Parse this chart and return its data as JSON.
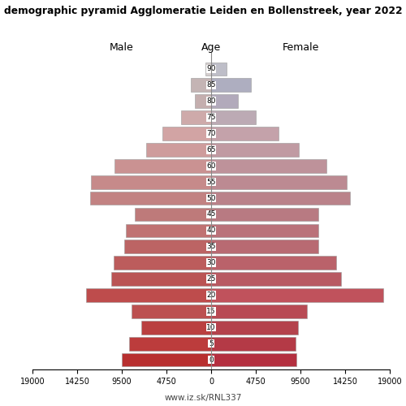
{
  "title": "demographic pyramid Agglomeratie Leiden en Bollenstreek, year 2022",
  "age_labels": [
    "90",
    "85",
    "80",
    "75",
    "70",
    "65",
    "60",
    "55",
    "50",
    "45",
    "40",
    "35",
    "30",
    "25",
    "20",
    "15",
    "10",
    "5",
    "0"
  ],
  "age_positions": [
    90,
    85,
    80,
    75,
    70,
    65,
    60,
    55,
    50,
    45,
    40,
    35,
    30,
    25,
    20,
    15,
    10,
    5,
    0
  ],
  "male": [
    620,
    2200,
    1700,
    3200,
    5200,
    6900,
    10300,
    12800,
    12900,
    8100,
    9100,
    9200,
    10400,
    10600,
    13300,
    8500,
    7400,
    8700,
    9500
  ],
  "female": [
    1600,
    4200,
    2850,
    4750,
    7200,
    9300,
    12300,
    14400,
    14800,
    11400,
    11400,
    11400,
    13300,
    13800,
    18300,
    10200,
    9200,
    9000,
    9100
  ],
  "male_colors": [
    "#d5cece",
    "#c4b4b4",
    "#c4aeae",
    "#ceaaaa",
    "#d2a4a4",
    "#ce9c9c",
    "#ca9292",
    "#c68a8a",
    "#c28282",
    "#be7a7a",
    "#c07272",
    "#bc6464",
    "#bc5c5c",
    "#ba5454",
    "#be4c4c",
    "#bc5050",
    "#ba4040",
    "#bc3c3c",
    "#b83030"
  ],
  "female_colors": [
    "#bebec8",
    "#aeaec0",
    "#b2aabb",
    "#bcaab4",
    "#c4a2aa",
    "#c09aa2",
    "#be929a",
    "#bc8a92",
    "#ba828a",
    "#b87a82",
    "#ba727a",
    "#b86a72",
    "#ba626a",
    "#b85a62",
    "#c0525c",
    "#b84a54",
    "#b4424c",
    "#b43a46",
    "#b43040"
  ],
  "xlim": 19000,
  "xticks": [
    0,
    4750,
    9500,
    14250,
    19000
  ],
  "xtick_labels_left": [
    "19000",
    "14250",
    "9500",
    "4750",
    "0"
  ],
  "xtick_labels_right": [
    "0",
    "4750",
    "9500",
    "14250",
    "19000"
  ],
  "xlabel_left": "Male",
  "xlabel_right": "Female",
  "xlabel_center": "Age",
  "watermark": "www.iz.sk/RNL337",
  "background_color": "#ffffff",
  "bar_height": 4.2
}
